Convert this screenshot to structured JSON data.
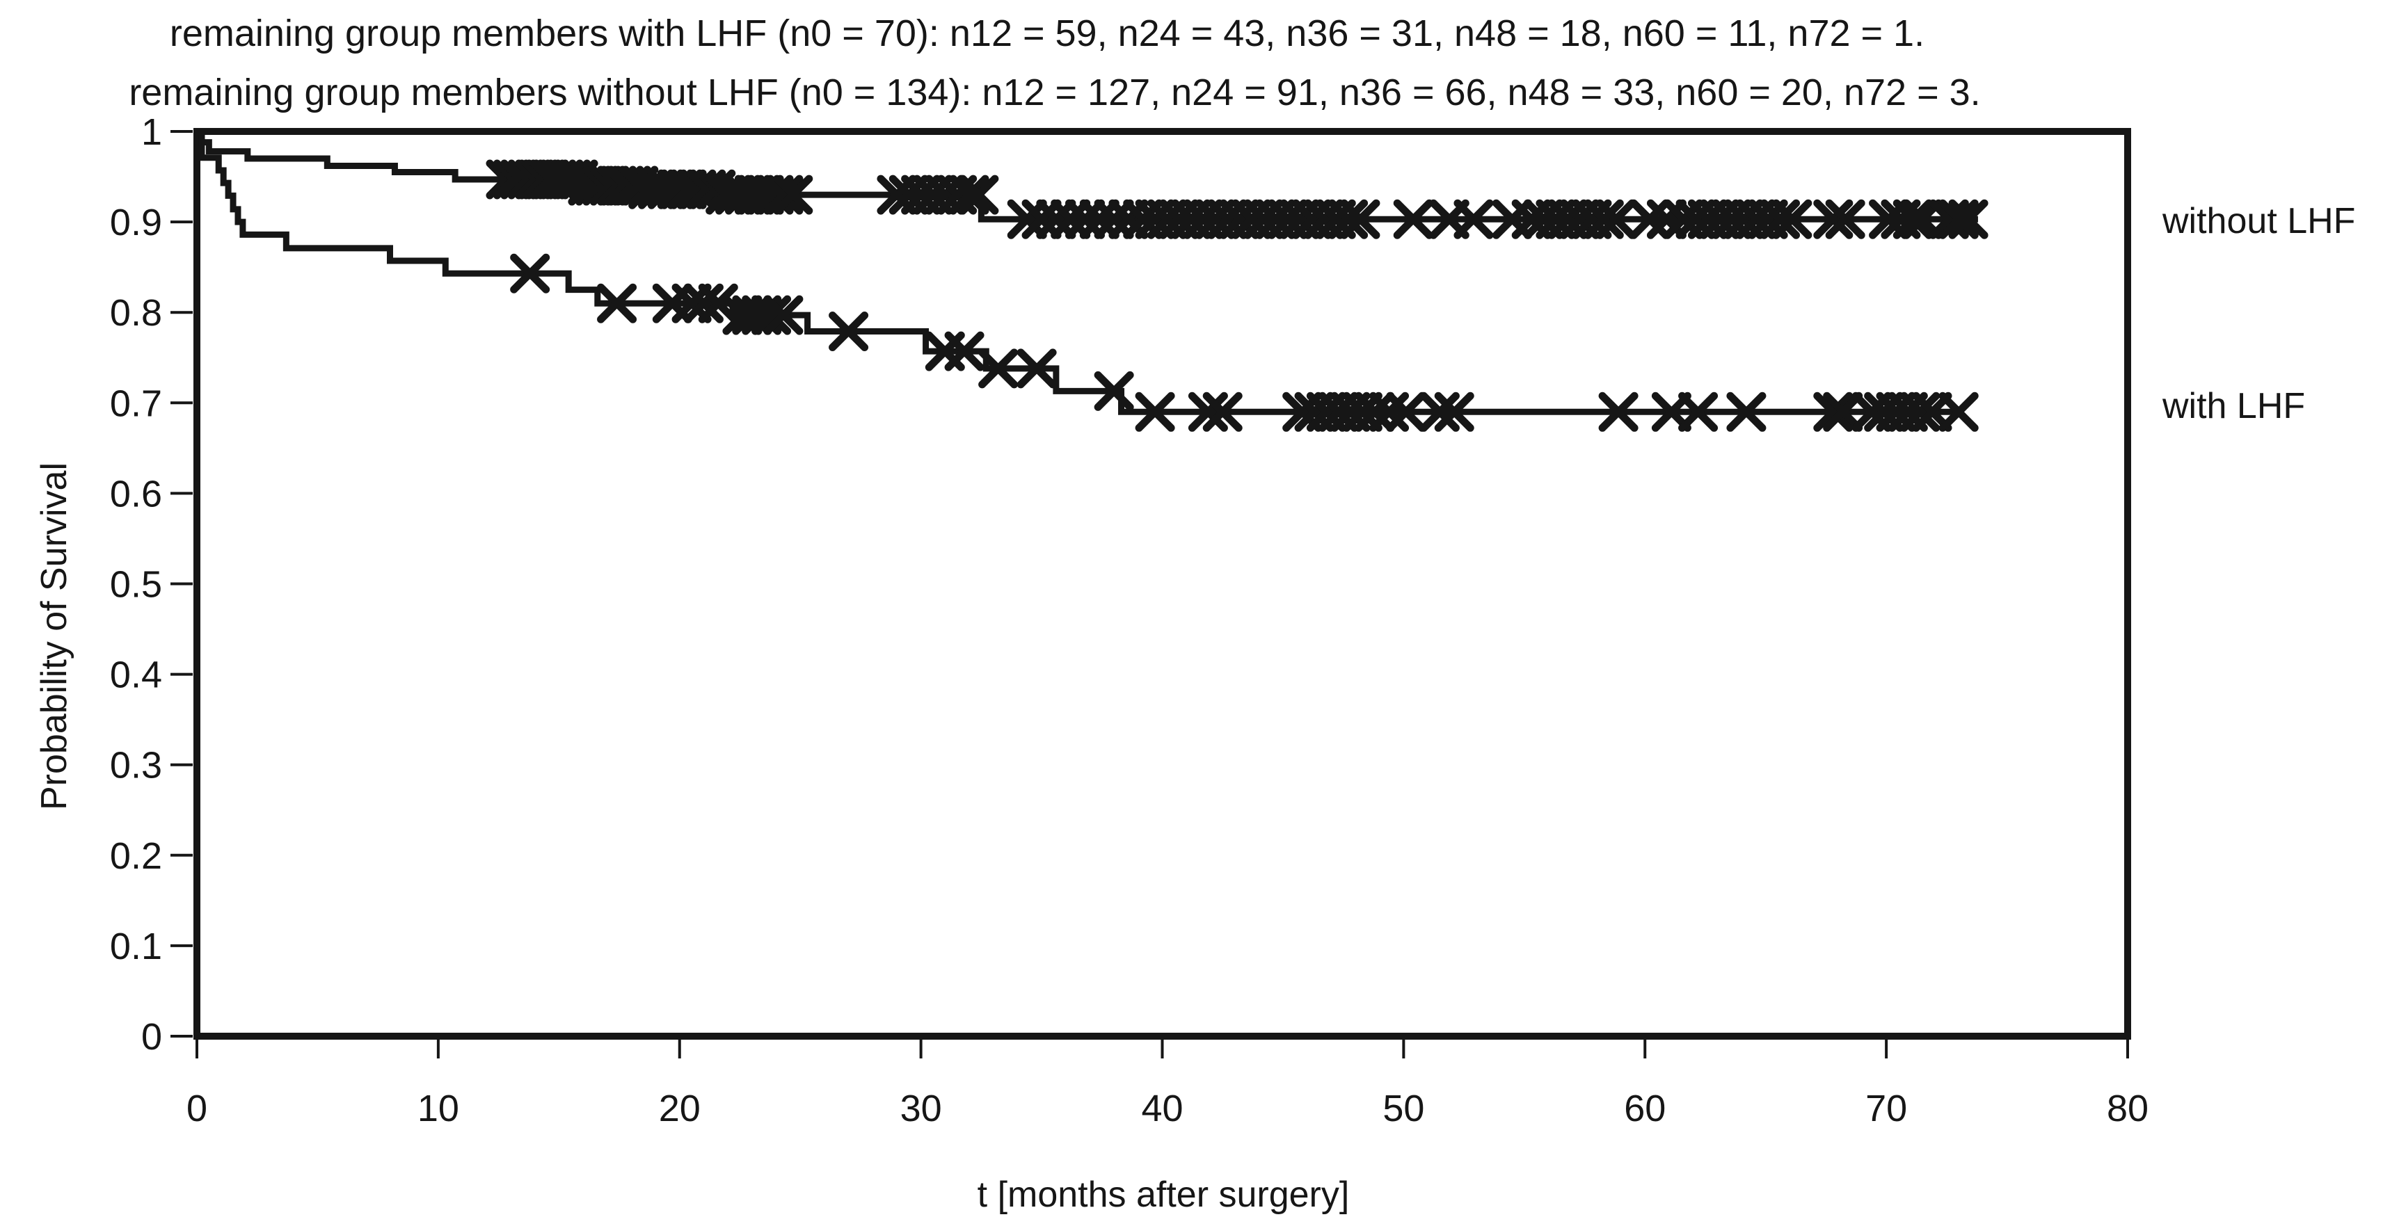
{
  "header": {
    "line1": "remaining group members with LHF (n0 = 70): n12 = 59, n24 = 43, n36 = 31, n48 = 18, n60 = 11, n72 = 1.",
    "line2": "remaining group members without LHF (n0 = 134): n12 = 127, n24 = 91, n36 = 66, n48 = 33, n60 = 20, n72 = 3."
  },
  "axes": {
    "x_label": "t [months after surgery]",
    "y_label": "Probability of Survival",
    "x_ticks": [
      0,
      10,
      20,
      30,
      40,
      50,
      60,
      70,
      80
    ],
    "y_tick_labels": [
      "1",
      "0.9",
      "0.8",
      "0.7",
      "0.6",
      "0.5",
      "0.4",
      "0.3",
      "0.2",
      "0.1",
      "0"
    ],
    "y_tick_values": [
      1.0,
      0.9,
      0.8,
      0.7,
      0.6,
      0.5,
      0.4,
      0.3,
      0.2,
      0.1,
      0.0
    ]
  },
  "legend": {
    "without_label": "without LHF",
    "with_label": "with LHF"
  },
  "colors": {
    "ink": "#161616",
    "background": "#ffffff"
  },
  "chart_data": {
    "type": "line",
    "subtype": "kaplan-meier-step-with-censor-marks",
    "title_line1": "remaining group members with LHF (n0 = 70): n12 = 59, n24 = 43, n36 = 31, n48 = 18, n60 = 11, n72 = 1.",
    "title_line2": "remaining group members without LHF (n0 = 134): n12 = 127, n24 = 91, n36 = 66, n48 = 33, n60 = 20, n72 = 3.",
    "xlabel": "t [months after surgery]",
    "ylabel": "Probability of Survival",
    "xlim": [
      0,
      80
    ],
    "ylim": [
      0,
      1
    ],
    "grid": false,
    "legend_position": "right-outside",
    "risk_counts": {
      "with_LHF": {
        "n0": 70,
        "n12": 59,
        "n24": 43,
        "n36": 31,
        "n48": 18,
        "n60": 11,
        "n72": 1
      },
      "without_LHF": {
        "n0": 134,
        "n12": 127,
        "n24": 91,
        "n36": 66,
        "n48": 33,
        "n60": 20,
        "n72": 3
      }
    },
    "series": [
      {
        "name": "without LHF",
        "n0": 134,
        "end_t": 73.8,
        "final_level": 0.903,
        "steps": [
          [
            0,
            1.0
          ],
          [
            0.2,
            0.988
          ],
          [
            0.5,
            0.978
          ],
          [
            2.1,
            0.97
          ],
          [
            5.4,
            0.962
          ],
          [
            8.2,
            0.955
          ],
          [
            10.7,
            0.947
          ],
          [
            15.9,
            0.94
          ],
          [
            18.5,
            0.936
          ],
          [
            21.7,
            0.93
          ],
          [
            32.5,
            0.903
          ]
        ],
        "censor_marks": [
          12.8,
          13.1,
          13.4,
          13.7,
          14.0,
          14.3,
          14.6,
          14.9,
          15.2,
          15.5,
          15.8,
          16.2,
          16.5,
          16.8,
          17.1,
          17.4,
          17.7,
          18.0,
          18.3,
          18.7,
          19.1,
          19.5,
          19.9,
          20.3,
          20.7,
          21.1,
          21.5,
          21.9,
          22.3,
          22.7,
          23.1,
          23.5,
          23.9,
          24.3,
          24.7,
          29.0,
          29.5,
          30.0,
          30.5,
          31.0,
          31.5,
          32.0,
          32.4,
          34.4,
          35.0,
          35.6,
          36.2,
          36.8,
          37.4,
          38.0,
          38.6,
          39.2,
          39.7,
          40.2,
          40.7,
          41.2,
          41.7,
          42.2,
          42.7,
          43.2,
          43.7,
          44.2,
          44.7,
          45.2,
          45.7,
          46.2,
          46.7,
          47.2,
          47.7,
          48.2,
          50.4,
          51.9,
          52.9,
          54.5,
          55.3,
          55.8,
          56.3,
          56.8,
          57.3,
          57.8,
          58.3,
          58.8,
          60.2,
          60.9,
          61.6,
          62.1,
          62.6,
          63.1,
          63.6,
          64.1,
          64.6,
          65.1,
          65.6,
          66.1,
          67.8,
          68.3,
          70.1,
          70.6,
          71.1,
          71.5,
          72.6,
          73.0,
          73.4
        ]
      },
      {
        "name": "with LHF",
        "n0": 70,
        "end_t": 73.2,
        "final_level": 0.69,
        "steps": [
          [
            0,
            1.0
          ],
          [
            0.2,
            0.971
          ],
          [
            0.9,
            0.957
          ],
          [
            1.1,
            0.943
          ],
          [
            1.3,
            0.929
          ],
          [
            1.5,
            0.914
          ],
          [
            1.7,
            0.9
          ],
          [
            1.9,
            0.886
          ],
          [
            3.7,
            0.871
          ],
          [
            8.0,
            0.857
          ],
          [
            10.3,
            0.843
          ],
          [
            15.4,
            0.825
          ],
          [
            16.6,
            0.81
          ],
          [
            22.2,
            0.797
          ],
          [
            25.3,
            0.779
          ],
          [
            30.2,
            0.757
          ],
          [
            32.7,
            0.738
          ],
          [
            35.6,
            0.713
          ],
          [
            38.3,
            0.69
          ]
        ],
        "censor_marks": [
          13.8,
          17.4,
          19.7,
          20.5,
          21.0,
          21.6,
          22.6,
          23.0,
          23.4,
          23.8,
          24.3,
          27.0,
          31.0,
          31.8,
          33.2,
          34.8,
          38.0,
          39.7,
          41.9,
          42.5,
          45.8,
          46.3,
          46.8,
          47.3,
          47.8,
          48.3,
          48.8,
          49.4,
          50.1,
          51.5,
          52.1,
          58.9,
          61.1,
          62.2,
          64.2,
          67.8,
          68.2,
          69.4,
          69.9,
          70.4,
          70.9,
          71.4,
          71.9,
          73.0
        ]
      }
    ]
  }
}
